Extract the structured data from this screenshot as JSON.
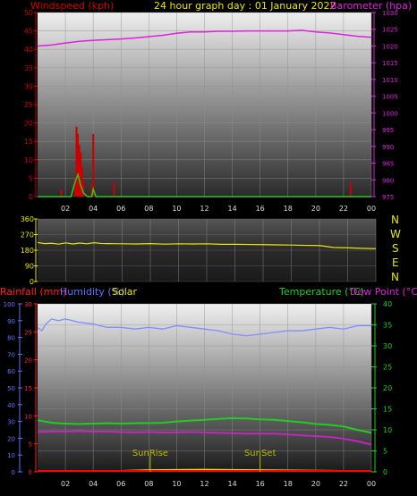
{
  "header": {
    "title": "24 hour graph day : 01 January 2022",
    "windspeed_label": "Windspeed (kph)",
    "barometer_label": "Barometer (hpa)"
  },
  "direction_labels": [
    "N",
    "W",
    "S",
    "E",
    "N"
  ],
  "bottom_labels": {
    "rainfall": "Rainfall (mm)",
    "humidity": "Humidity (%)",
    "solar": "Solar",
    "temperature": "Temperature (°C)",
    "dew_point": "Dew Point (°C)",
    "sunrise": "SunRise",
    "sunset": "SunSet"
  },
  "colors": {
    "wind": "#cc0000",
    "gust": "#22cc22",
    "barometer": "#dd22dd",
    "direction": "#e8e800",
    "humidity": "#7f8fff",
    "temperature": "#22cc22",
    "dewpoint": "#cc22cc",
    "rainfall": "#ff0000",
    "solar": "#e8e800",
    "sun_marker": "#b8b800",
    "rain_axis": "#ff2020",
    "humidity_axis": "#6070ff",
    "temp_axis": "#22cc22"
  },
  "chart_data": [
    {
      "type": "line",
      "panel": "wind_barometer",
      "x_ticks": [
        "02",
        "04",
        "06",
        "08",
        "10",
        "12",
        "14",
        "16",
        "18",
        "20",
        "22",
        "00"
      ],
      "y_left_ticks": [
        "0",
        "5",
        "10",
        "15",
        "20",
        "25",
        "30",
        "35",
        "40",
        "45",
        "50"
      ],
      "y_right_ticks": [
        "975",
        "980",
        "985",
        "990",
        "995",
        "1000",
        "1005",
        "1010",
        "1015",
        "1020",
        "1025",
        "1030"
      ],
      "ylim_left": [
        0,
        50
      ],
      "ylim_right": [
        975,
        1030
      ],
      "xlim": [
        0,
        24
      ],
      "series": [
        {
          "name": "Windspeed (kph)",
          "axis": "left",
          "style": "bars",
          "x": [
            1.7,
            2.7,
            2.8,
            2.9,
            3.0,
            3.1,
            3.2,
            3.3,
            3.9,
            4.0,
            5.5,
            22.5
          ],
          "values": [
            2,
            5,
            19,
            17,
            14,
            12,
            8,
            4,
            3,
            17,
            4,
            4
          ]
        },
        {
          "name": "gust",
          "axis": "left",
          "style": "line",
          "x": [
            0,
            2.4,
            2.7,
            2.9,
            3.1,
            3.3,
            3.6,
            3.9,
            4.0,
            4.2,
            4.5,
            24
          ],
          "values": [
            0,
            0,
            4,
            6,
            3,
            1,
            0,
            0,
            2,
            0,
            0,
            0
          ]
        },
        {
          "name": "Barometer (hpa)",
          "axis": "right",
          "style": "line",
          "x": [
            0,
            1,
            2,
            3,
            4,
            5,
            6,
            7,
            8,
            9,
            10,
            11,
            12,
            13,
            14,
            15,
            16,
            17,
            18,
            19,
            20,
            21,
            22,
            23,
            24
          ],
          "values": [
            1020.0,
            1020.3,
            1020.9,
            1021.4,
            1021.7,
            1021.9,
            1022.1,
            1022.4,
            1022.8,
            1023.2,
            1023.8,
            1024.2,
            1024.2,
            1024.4,
            1024.4,
            1024.5,
            1024.5,
            1024.5,
            1024.5,
            1024.7,
            1024.2,
            1023.9,
            1023.4,
            1022.9,
            1022.6
          ]
        }
      ]
    },
    {
      "type": "line",
      "panel": "wind_direction",
      "y_ticks": [
        "0",
        "90",
        "180",
        "270",
        "360"
      ],
      "ylim": [
        0,
        360
      ],
      "xlim": [
        0,
        24
      ],
      "series": [
        {
          "name": "direction",
          "axis": "left",
          "style": "line",
          "x": [
            0,
            0.5,
            1,
            1.5,
            2,
            2.5,
            3,
            3.5,
            4,
            4.5,
            5,
            6,
            7,
            8,
            9,
            10,
            11,
            12,
            13,
            14,
            15,
            16,
            17,
            18,
            19,
            20,
            21,
            22,
            23,
            24
          ],
          "values": [
            224,
            218,
            220,
            215,
            222,
            216,
            221,
            217,
            223,
            219,
            218,
            217,
            216,
            218,
            215,
            217,
            216,
            217,
            214,
            214,
            213,
            212,
            211,
            210,
            208,
            207,
            196,
            194,
            191,
            189
          ]
        }
      ]
    },
    {
      "type": "line",
      "panel": "rain_humidity_temperature",
      "x_ticks": [
        "02",
        "04",
        "06",
        "08",
        "10",
        "12",
        "14",
        "16",
        "18",
        "20",
        "22",
        "00"
      ],
      "y_left_rain_ticks": [
        "0",
        "5",
        "10",
        "15",
        "20",
        "25",
        "30"
      ],
      "y_left_humidity_ticks": [
        "0",
        "10",
        "20",
        "30",
        "40",
        "50",
        "60",
        "70",
        "80",
        "90",
        "100"
      ],
      "y_right_ticks": [
        "0",
        "5",
        "10",
        "15",
        "20",
        "25",
        "30",
        "35",
        "40"
      ],
      "ylim_rain": [
        0,
        30
      ],
      "ylim_humidity": [
        0,
        100
      ],
      "ylim_right": [
        0,
        40
      ],
      "xlim": [
        0,
        24
      ],
      "sunrise_x": 8.1,
      "sunset_x": 16.0,
      "series": [
        {
          "name": "Humidity (%)",
          "axis": "humidity",
          "style": "line",
          "x": [
            0,
            0.3,
            0.6,
            1,
            1.5,
            2,
            3,
            4,
            5,
            6,
            7,
            8,
            9,
            10,
            11,
            12,
            13,
            14,
            15,
            16,
            17,
            18,
            19,
            20,
            21,
            22,
            23,
            24
          ],
          "values": [
            86,
            84,
            88,
            91,
            90,
            91,
            89,
            88,
            86,
            86,
            85,
            86,
            85,
            87,
            86,
            85,
            84,
            82,
            81,
            82,
            83,
            84,
            84,
            85,
            86,
            85,
            87,
            87
          ]
        },
        {
          "name": "Temperature (°C)",
          "axis": "right",
          "style": "line",
          "x": [
            0,
            1,
            2,
            3,
            4,
            5,
            6,
            7,
            8,
            9,
            10,
            11,
            12,
            13,
            14,
            15,
            16,
            17,
            18,
            19,
            20,
            21,
            22,
            23,
            24
          ],
          "values": [
            12.3,
            11.7,
            11.5,
            11.4,
            11.5,
            11.6,
            11.5,
            11.6,
            11.6,
            11.7,
            12.0,
            12.2,
            12.4,
            12.6,
            12.8,
            12.7,
            12.5,
            12.4,
            12.1,
            11.8,
            11.4,
            11.2,
            10.8,
            10.0,
            9.3
          ]
        },
        {
          "name": "Dew Point (°C)",
          "axis": "right",
          "style": "line",
          "x": [
            0,
            1,
            2,
            3,
            4,
            5,
            6,
            7,
            8,
            9,
            10,
            11,
            12,
            13,
            14,
            15,
            16,
            17,
            18,
            19,
            20,
            21,
            22,
            23,
            24
          ],
          "values": [
            9.5,
            9.6,
            9.6,
            9.7,
            9.6,
            9.6,
            9.5,
            9.4,
            9.5,
            9.4,
            9.4,
            9.5,
            9.4,
            9.3,
            9.2,
            9.1,
            9.1,
            9.1,
            8.9,
            8.7,
            8.5,
            8.3,
            7.9,
            7.3,
            6.5
          ]
        },
        {
          "name": "Solar",
          "axis": "right",
          "style": "line",
          "x": [
            0,
            6,
            8,
            12,
            16,
            22,
            24
          ],
          "values": [
            0.2,
            0.2,
            0.4,
            0.5,
            0.4,
            0.2,
            0.2
          ]
        },
        {
          "name": "Rainfall (mm)",
          "axis": "rain",
          "style": "line",
          "x": [
            0,
            24
          ],
          "values": [
            0,
            0
          ]
        }
      ]
    }
  ]
}
